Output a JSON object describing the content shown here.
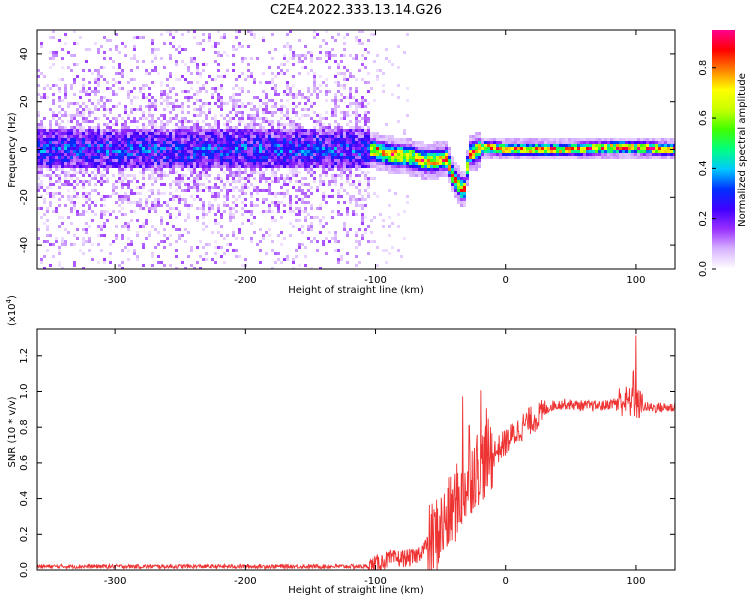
{
  "figure_title": "C2E4.2022.333.13.14.G26",
  "chart_data": [
    {
      "type": "heatmap",
      "xlabel": "Height of straight line (km)",
      "ylabel": "Frequency (Hz)",
      "xlim": [
        -360,
        130
      ],
      "ylim": [
        -50,
        50
      ],
      "x_ticks": [
        {
          "value": -300,
          "label": "-300"
        },
        {
          "value": -200,
          "label": "-200"
        },
        {
          "value": -100,
          "label": "-100"
        },
        {
          "value": 0,
          "label": "0"
        },
        {
          "value": 100,
          "label": "100"
        }
      ],
      "y_ticks": [
        {
          "value": -40,
          "label": "-40"
        },
        {
          "value": -20,
          "label": "-20"
        },
        {
          "value": 0,
          "label": "0"
        },
        {
          "value": 20,
          "label": "20"
        },
        {
          "value": 40,
          "label": "40"
        }
      ],
      "colorbar": {
        "label": "Normalized spectral amplitude",
        "range": [
          0,
          0.95
        ],
        "ticks": [
          {
            "value": 0.0,
            "label": "0.0"
          },
          {
            "value": 0.2,
            "label": "0.2"
          },
          {
            "value": 0.4,
            "label": "0.4"
          },
          {
            "value": 0.6,
            "label": "0.6"
          },
          {
            "value": 0.8,
            "label": "0.8"
          }
        ],
        "colormap": [
          "#ffffff",
          "#d8b4ff",
          "#9b30ff",
          "#4000ff",
          "#0030ff",
          "#00c8ff",
          "#00ff80",
          "#40ff00",
          "#c8ff00",
          "#ffff00",
          "#ff8000",
          "#ff0000",
          "#ff0090"
        ]
      },
      "regions": [
        {
          "name": "noise",
          "x_range": [
            -360,
            -105
          ],
          "band_center_hz": 0,
          "band_halfwidth_hz": 8,
          "scatter_halfwidth_hz": 50,
          "band_amplitude": 0.3,
          "scatter_amplitude": 0.08
        },
        {
          "name": "signal",
          "x_range": [
            -105,
            130
          ],
          "band_center_hz": 0,
          "band_halfwidth_hz": 2,
          "peak_amplitude": 0.95
        }
      ],
      "ridge_track": [
        {
          "x": -105,
          "y": 0
        },
        {
          "x": -90,
          "y": -2
        },
        {
          "x": -75,
          "y": -3
        },
        {
          "x": -60,
          "y": -5
        },
        {
          "x": -45,
          "y": -4
        },
        {
          "x": -40,
          "y": -12
        },
        {
          "x": -32,
          "y": -18
        },
        {
          "x": -28,
          "y": -2
        },
        {
          "x": -15,
          "y": 1
        },
        {
          "x": 0,
          "y": 0
        },
        {
          "x": 50,
          "y": 0
        },
        {
          "x": 90,
          "y": 1
        },
        {
          "x": 130,
          "y": 0
        }
      ]
    },
    {
      "type": "line",
      "xlabel": "Height of straight line (km)",
      "ylabel": "SNR (10 * v/v)",
      "y_multiplier": "(x10",
      "y_multiplier_exp": "4",
      "y_multiplier_close": ")",
      "xlim": [
        -360,
        130
      ],
      "ylim": [
        0,
        1.35
      ],
      "x_ticks": [
        {
          "value": -300,
          "label": "-300"
        },
        {
          "value": -200,
          "label": "-200"
        },
        {
          "value": -100,
          "label": "-100"
        },
        {
          "value": 0,
          "label": "0"
        },
        {
          "value": 100,
          "label": "100"
        }
      ],
      "y_ticks": [
        {
          "value": 0.0,
          "label": "0.0"
        },
        {
          "value": 0.2,
          "label": "0.2"
        },
        {
          "value": 0.4,
          "label": "0.4"
        },
        {
          "value": 0.6,
          "label": "0.6"
        },
        {
          "value": 0.8,
          "label": "0.8"
        },
        {
          "value": 1.0,
          "label": "1.0"
        },
        {
          "value": 1.2,
          "label": "1.2"
        }
      ],
      "color": "#ee3333",
      "series": [
        {
          "name": "SNR",
          "points": [
            {
              "x": -360,
              "y": 0.02
            },
            {
              "x": -250,
              "y": 0.02
            },
            {
              "x": -150,
              "y": 0.02
            },
            {
              "x": -105,
              "y": 0.02
            },
            {
              "x": -90,
              "y": 0.06
            },
            {
              "x": -70,
              "y": 0.07
            },
            {
              "x": -55,
              "y": 0.18
            },
            {
              "x": -45,
              "y": 0.28
            },
            {
              "x": -35,
              "y": 0.42
            },
            {
              "x": -25,
              "y": 0.55
            },
            {
              "x": -15,
              "y": 0.62
            },
            {
              "x": -5,
              "y": 0.68
            },
            {
              "x": 5,
              "y": 0.75
            },
            {
              "x": 15,
              "y": 0.82
            },
            {
              "x": 25,
              "y": 0.86
            },
            {
              "x": 35,
              "y": 0.92
            },
            {
              "x": 45,
              "y": 0.93
            },
            {
              "x": 60,
              "y": 0.92
            },
            {
              "x": 75,
              "y": 0.92
            },
            {
              "x": 90,
              "y": 0.95
            },
            {
              "x": 100,
              "y": 0.93
            },
            {
              "x": 110,
              "y": 0.91
            },
            {
              "x": 130,
              "y": 0.91
            }
          ],
          "spikes": [
            {
              "x": -33,
              "y": 1.0
            },
            {
              "x": -28,
              "y": 0.85
            },
            {
              "x": -19,
              "y": 1.05
            },
            {
              "x": -15,
              "y": 0.95
            },
            {
              "x": 100,
              "y": 1.35
            },
            {
              "x": 98,
              "y": 1.12
            }
          ]
        }
      ]
    }
  ]
}
